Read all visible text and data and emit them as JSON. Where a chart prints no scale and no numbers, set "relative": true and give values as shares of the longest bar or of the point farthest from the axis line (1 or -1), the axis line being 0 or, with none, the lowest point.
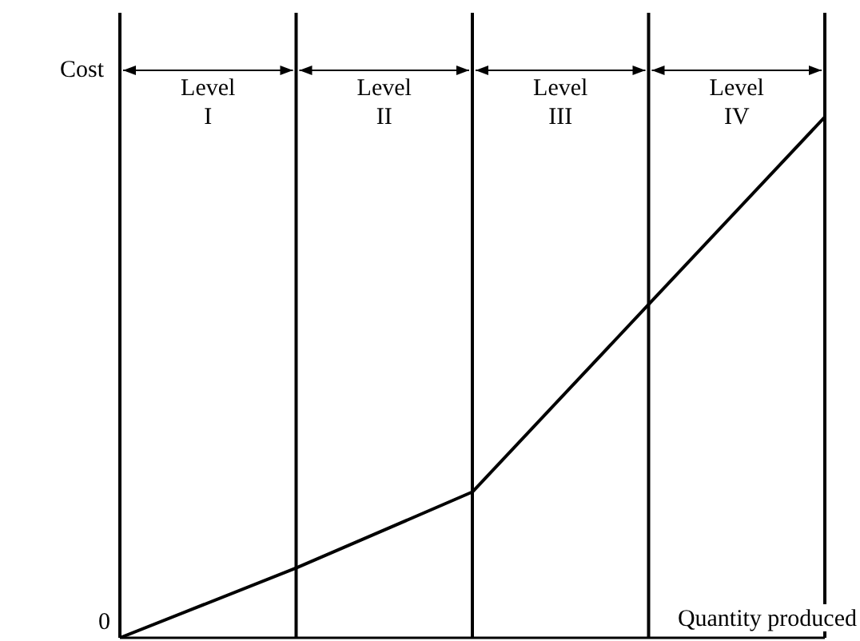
{
  "chart_data": {
    "type": "line",
    "relative": true,
    "xlabel": "Quantity produced",
    "ylabel": "Cost",
    "categories": [
      null,
      null,
      null,
      null,
      null
    ],
    "series": [
      {
        "color": "#000000",
        "values": [
          0,
          0.134,
          0.28,
          0.64,
          1
        ]
      }
    ],
    "annotations": [
      "0",
      "Level I",
      "Level II",
      "Level III",
      "Level IV"
    ],
    "grid": "x",
    "legend": false,
    "marker": "none",
    "line_style": "solid"
  }
}
